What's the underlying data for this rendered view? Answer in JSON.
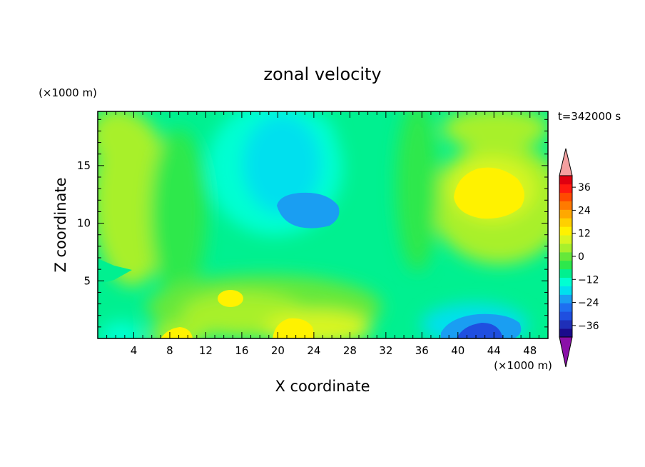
{
  "chart_data": {
    "type": "heatmap",
    "title": "zonal velocity",
    "xlabel": "X coordinate",
    "ylabel": "Z coordinate",
    "x_unit_label": "(×1000 m)",
    "y_unit_label": "(×1000 m)",
    "time_label": "t=342000 s",
    "xlim": [
      0,
      50
    ],
    "ylim": [
      0,
      19.7
    ],
    "x_ticks": [
      4,
      8,
      12,
      16,
      20,
      24,
      28,
      32,
      36,
      40,
      44,
      48
    ],
    "y_ticks": [
      5,
      10,
      15
    ],
    "colorbar": {
      "ticks": [
        36,
        24,
        12,
        0,
        -12,
        -24,
        -36
      ],
      "levels": [
        -42,
        -39,
        -36,
        -33,
        -30,
        -27,
        -24,
        -21,
        -18,
        -15,
        -12,
        -9,
        -6,
        -3,
        0,
        3,
        6,
        9,
        12,
        15,
        18,
        21,
        24,
        27,
        30,
        33,
        36,
        39,
        42
      ],
      "colors": [
        "#1a0b8c",
        "#1f2fb8",
        "#1f4fe0",
        "#1e6ff0",
        "#1a9ef2",
        "#00e0ee",
        "#00ffd2",
        "#00f090",
        "#2de84c",
        "#66e83a",
        "#a8f02c",
        "#d8f520",
        "#fff200",
        "#ffd000",
        "#ffa800",
        "#ff7a00",
        "#ff4a00",
        "#ff1a10",
        "#e00010"
      ],
      "over_color": "#f4a0a0",
      "under_color": "#8a10a8"
    },
    "field_samples_m_per_s": [
      {
        "x": 22.5,
        "z": 11.3,
        "u": -16
      },
      {
        "x": 42.0,
        "z": 1.0,
        "u": -25
      },
      {
        "x": 42.5,
        "z": 13.0,
        "u": 9
      },
      {
        "x": 22.0,
        "z": 1.2,
        "u": 8
      },
      {
        "x": 9.5,
        "z": 0.4,
        "u": 7
      },
      {
        "x": 14.5,
        "z": 3.5,
        "u": 6
      },
      {
        "x": 21.0,
        "z": 16.0,
        "u": -10
      },
      {
        "x": 4.0,
        "z": 10.0,
        "u": 2
      },
      {
        "x": 30.0,
        "z": 6.0,
        "u": -5
      },
      {
        "x": 47.0,
        "z": 3.0,
        "u": -4
      }
    ]
  }
}
